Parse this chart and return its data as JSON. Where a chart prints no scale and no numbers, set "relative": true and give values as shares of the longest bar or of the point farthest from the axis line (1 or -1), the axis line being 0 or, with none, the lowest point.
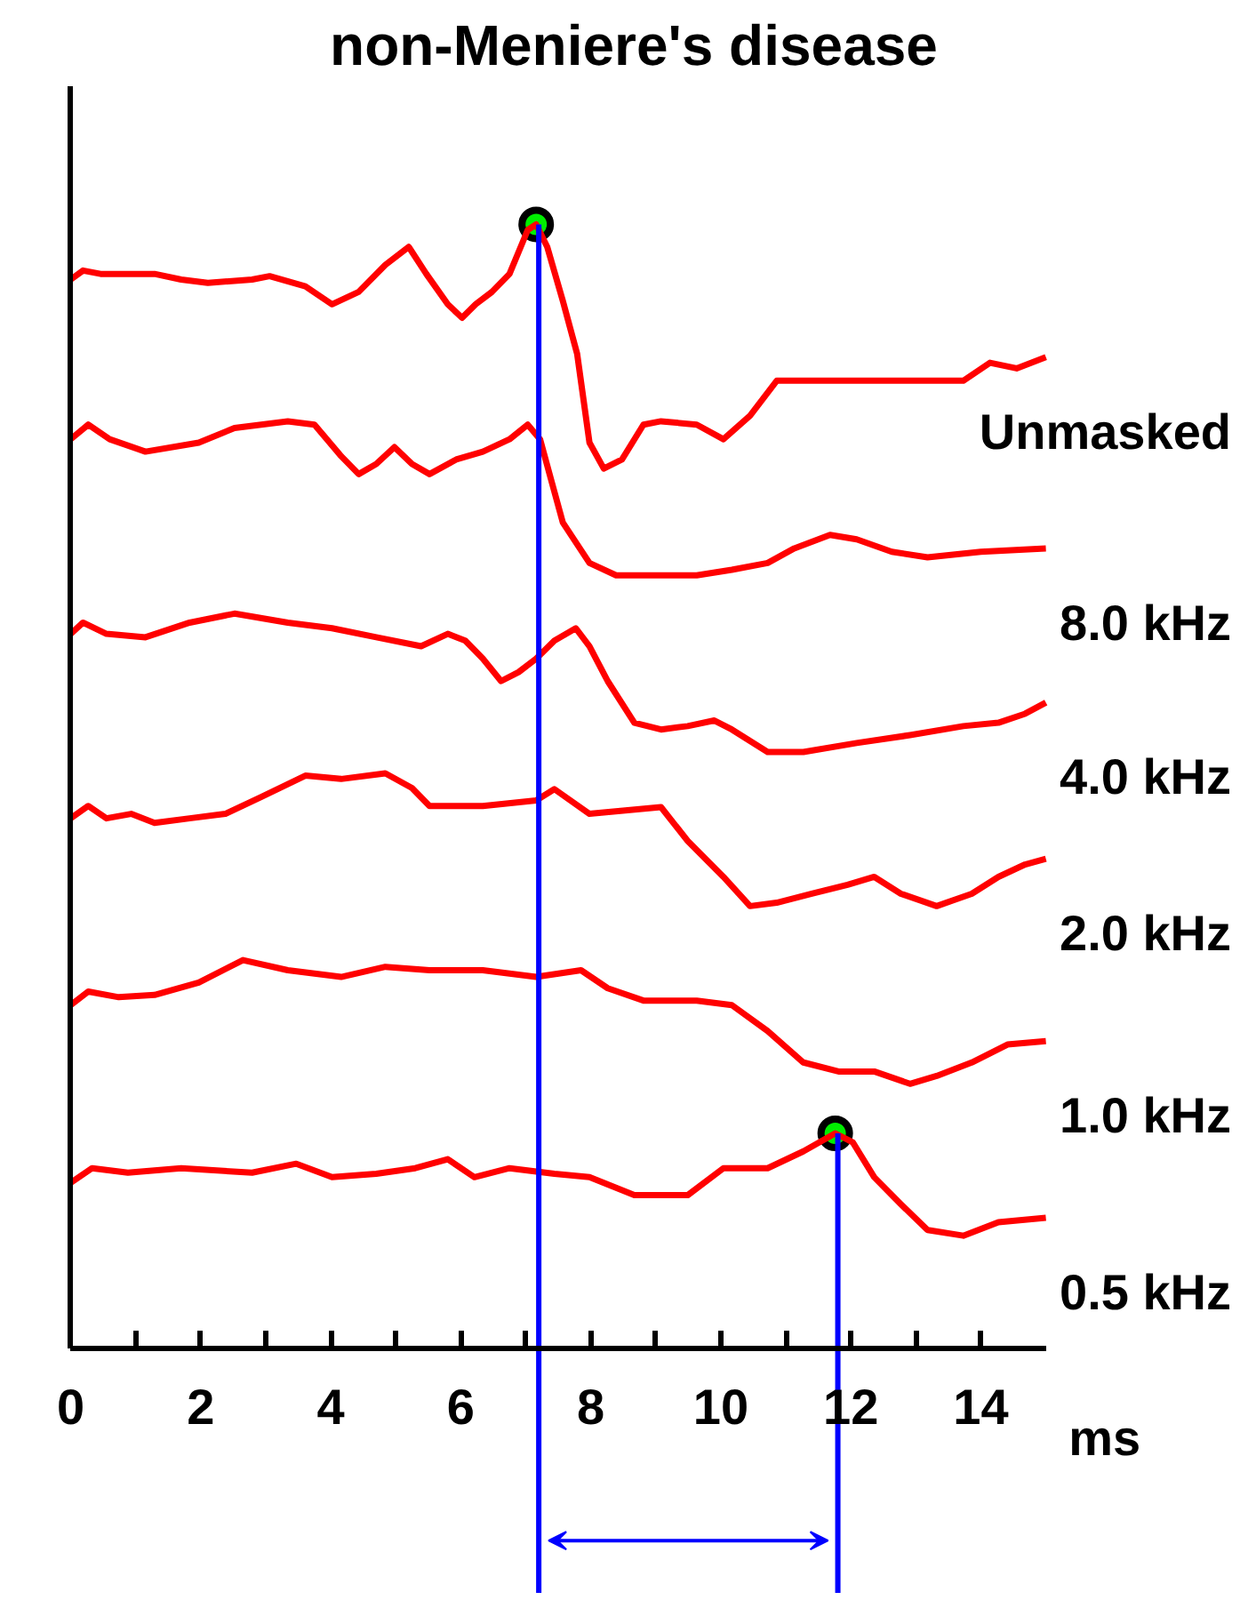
{
  "chart_data": {
    "type": "line",
    "title": "non-Meniere's disease",
    "xlabel": "ms",
    "relative": true,
    "xlim": [
      0,
      15
    ],
    "xticks": [
      0,
      {
        "value": 1,
        "label": null
      },
      2,
      {
        "value": 3,
        "label": null
      },
      4,
      {
        "value": 5,
        "label": null
      },
      6,
      {
        "value": 7,
        "label": null
      },
      8,
      {
        "value": 9,
        "label": null
      },
      10,
      {
        "value": 11,
        "label": null
      },
      12,
      {
        "value": 13,
        "label": null
      },
      14
    ],
    "marker": "none",
    "line_style": "solid",
    "series": [
      {
        "name": "Unmasked",
        "color": "#ff0000",
        "x": [
          0,
          0.19,
          0.46,
          1.29,
          1.7,
          2.11,
          2.79,
          3.06,
          3.61,
          4.02,
          4.43,
          4.84,
          5.2,
          5.47,
          5.8,
          6.02,
          6.23,
          6.48,
          6.75,
          7.03,
          7.16,
          7.33,
          7.57,
          7.79,
          7.98,
          8.2,
          8.48,
          8.81,
          9.08,
          9.63,
          10.04,
          10.45,
          10.86,
          11.54,
          12.91,
          13.73,
          14.14,
          14.55,
          15.0
        ],
        "values": [
          0.951,
          0.959,
          0.956,
          0.956,
          0.951,
          0.948,
          0.951,
          0.954,
          0.945,
          0.929,
          0.94,
          0.964,
          0.98,
          0.956,
          0.929,
          0.917,
          0.929,
          0.94,
          0.956,
          0.995,
          1.0,
          0.98,
          0.932,
          0.885,
          0.806,
          0.783,
          0.791,
          0.822,
          0.825,
          0.822,
          0.809,
          0.83,
          0.861,
          0.861,
          0.861,
          0.861,
          0.877,
          0.872,
          0.882
        ]
      },
      {
        "name": "8.0 kHz",
        "color": "#ff0000",
        "x": [
          0,
          0.27,
          0.6,
          1.15,
          1.97,
          2.52,
          3.34,
          3.75,
          4.16,
          4.43,
          4.7,
          4.98,
          5.25,
          5.52,
          5.93,
          6.34,
          6.75,
          7.03,
          7.22,
          7.38,
          7.57,
          7.98,
          8.39,
          9.08,
          9.63,
          10.17,
          10.72,
          11.13,
          11.68,
          12.09,
          12.63,
          13.18,
          14.0,
          15.0
        ],
        "values": [
          0.809,
          0.822,
          0.809,
          0.798,
          0.806,
          0.819,
          0.825,
          0.822,
          0.794,
          0.778,
          0.787,
          0.802,
          0.787,
          0.778,
          0.791,
          0.798,
          0.809,
          0.822,
          0.809,
          0.775,
          0.735,
          0.699,
          0.688,
          0.688,
          0.688,
          0.693,
          0.699,
          0.712,
          0.724,
          0.72,
          0.709,
          0.704,
          0.709,
          0.712
        ]
      },
      {
        "name": "4.0 kHz",
        "color": "#ff0000",
        "x": [
          0,
          0.19,
          0.55,
          1.15,
          1.83,
          2.52,
          3.34,
          4.02,
          4.7,
          5.39,
          5.8,
          6.07,
          6.34,
          6.62,
          6.89,
          7.16,
          7.44,
          7.77,
          7.98,
          8.26,
          8.67,
          9.08,
          9.49,
          9.9,
          10.17,
          10.72,
          11.27,
          12.09,
          12.91,
          13.73,
          14.27,
          14.68,
          15.0
        ],
        "values": [
          0.636,
          0.646,
          0.636,
          0.633,
          0.646,
          0.654,
          0.646,
          0.641,
          0.633,
          0.625,
          0.636,
          0.63,
          0.614,
          0.594,
          0.602,
          0.614,
          0.63,
          0.641,
          0.625,
          0.594,
          0.557,
          0.551,
          0.554,
          0.559,
          0.551,
          0.531,
          0.531,
          0.539,
          0.546,
          0.554,
          0.557,
          0.565,
          0.575
        ]
      },
      {
        "name": "2.0 kHz",
        "color": "#ff0000",
        "x": [
          0,
          0.27,
          0.55,
          0.93,
          1.29,
          1.83,
          2.38,
          2.93,
          3.61,
          4.16,
          4.84,
          5.25,
          5.52,
          6.34,
          7.16,
          7.44,
          7.98,
          8.53,
          9.08,
          9.49,
          10.04,
          10.45,
          10.86,
          11.4,
          11.95,
          12.36,
          12.77,
          13.32,
          13.86,
          14.27,
          14.68,
          15.0
        ],
        "values": [
          0.472,
          0.483,
          0.472,
          0.476,
          0.468,
          0.472,
          0.476,
          0.491,
          0.51,
          0.507,
          0.512,
          0.499,
          0.483,
          0.483,
          0.488,
          0.498,
          0.476,
          0.479,
          0.482,
          0.452,
          0.42,
          0.394,
          0.397,
          0.405,
          0.413,
          0.42,
          0.405,
          0.394,
          0.405,
          0.42,
          0.431,
          0.436
        ]
      },
      {
        "name": "1.0 kHz",
        "color": "#ff0000",
        "x": [
          0,
          0.27,
          0.74,
          1.29,
          1.97,
          2.65,
          3.34,
          4.16,
          4.84,
          5.52,
          6.34,
          7.16,
          7.85,
          8.26,
          8.81,
          9.63,
          10.17,
          10.72,
          11.27,
          11.81,
          12.36,
          12.91,
          13.32,
          13.86,
          14.41,
          15.0
        ],
        "values": [
          0.306,
          0.318,
          0.313,
          0.315,
          0.326,
          0.346,
          0.337,
          0.331,
          0.34,
          0.337,
          0.337,
          0.331,
          0.337,
          0.321,
          0.31,
          0.31,
          0.306,
          0.283,
          0.255,
          0.247,
          0.247,
          0.236,
          0.243,
          0.255,
          0.271,
          0.274
        ]
      },
      {
        "name": "0.5 kHz",
        "color": "#ff0000",
        "x": [
          0,
          0.33,
          0.88,
          1.7,
          2.79,
          3.47,
          4.02,
          4.7,
          5.3,
          5.8,
          6.21,
          6.75,
          7.44,
          7.98,
          8.67,
          9.49,
          10.04,
          10.72,
          11.27,
          11.76,
          12.03,
          12.36,
          12.77,
          13.18,
          13.73,
          14.27,
          15.0
        ],
        "values": [
          0.148,
          0.161,
          0.157,
          0.161,
          0.157,
          0.165,
          0.153,
          0.156,
          0.161,
          0.169,
          0.153,
          0.161,
          0.156,
          0.153,
          0.137,
          0.137,
          0.161,
          0.161,
          0.176,
          0.192,
          0.184,
          0.153,
          0.129,
          0.106,
          0.101,
          0.113,
          0.117
        ]
      },
      {
        "type": "scatter",
        "color": "#00ee00",
        "marker": "circle",
        "x": [
          7.16,
          11.76
        ],
        "values": [
          1.0,
          0.192
        ]
      }
    ],
    "ref_lines": [
      {
        "axis": "x",
        "value": 7.2,
        "color": "#0000ff"
      },
      {
        "axis": "x",
        "value": 11.8,
        "color": "#0000ff"
      }
    ]
  }
}
